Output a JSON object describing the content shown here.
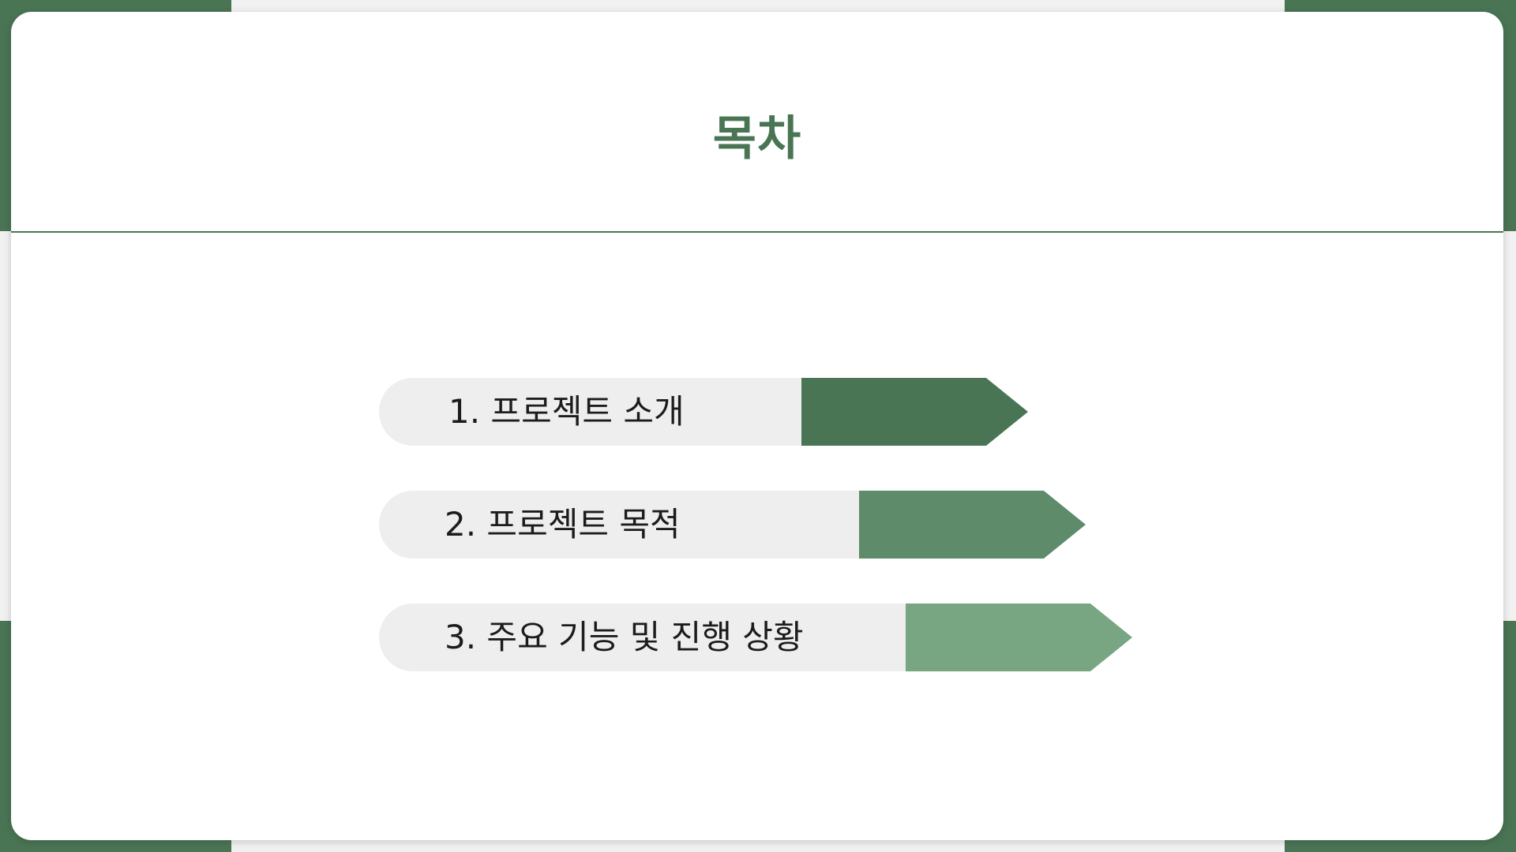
{
  "title": "목차",
  "colors": {
    "accent_dark": "#4a7554",
    "accent_mid": "#5e8b69",
    "accent_light": "#78a682",
    "pill_bg": "#eeeeee"
  },
  "toc": [
    {
      "label": "1. 프로젝트 소개",
      "color": "#4a7554"
    },
    {
      "label": "2. 프로젝트 목적",
      "color": "#5e8b69"
    },
    {
      "label": "3. 주요 기능 및 진행 상황",
      "color": "#78a682"
    }
  ]
}
